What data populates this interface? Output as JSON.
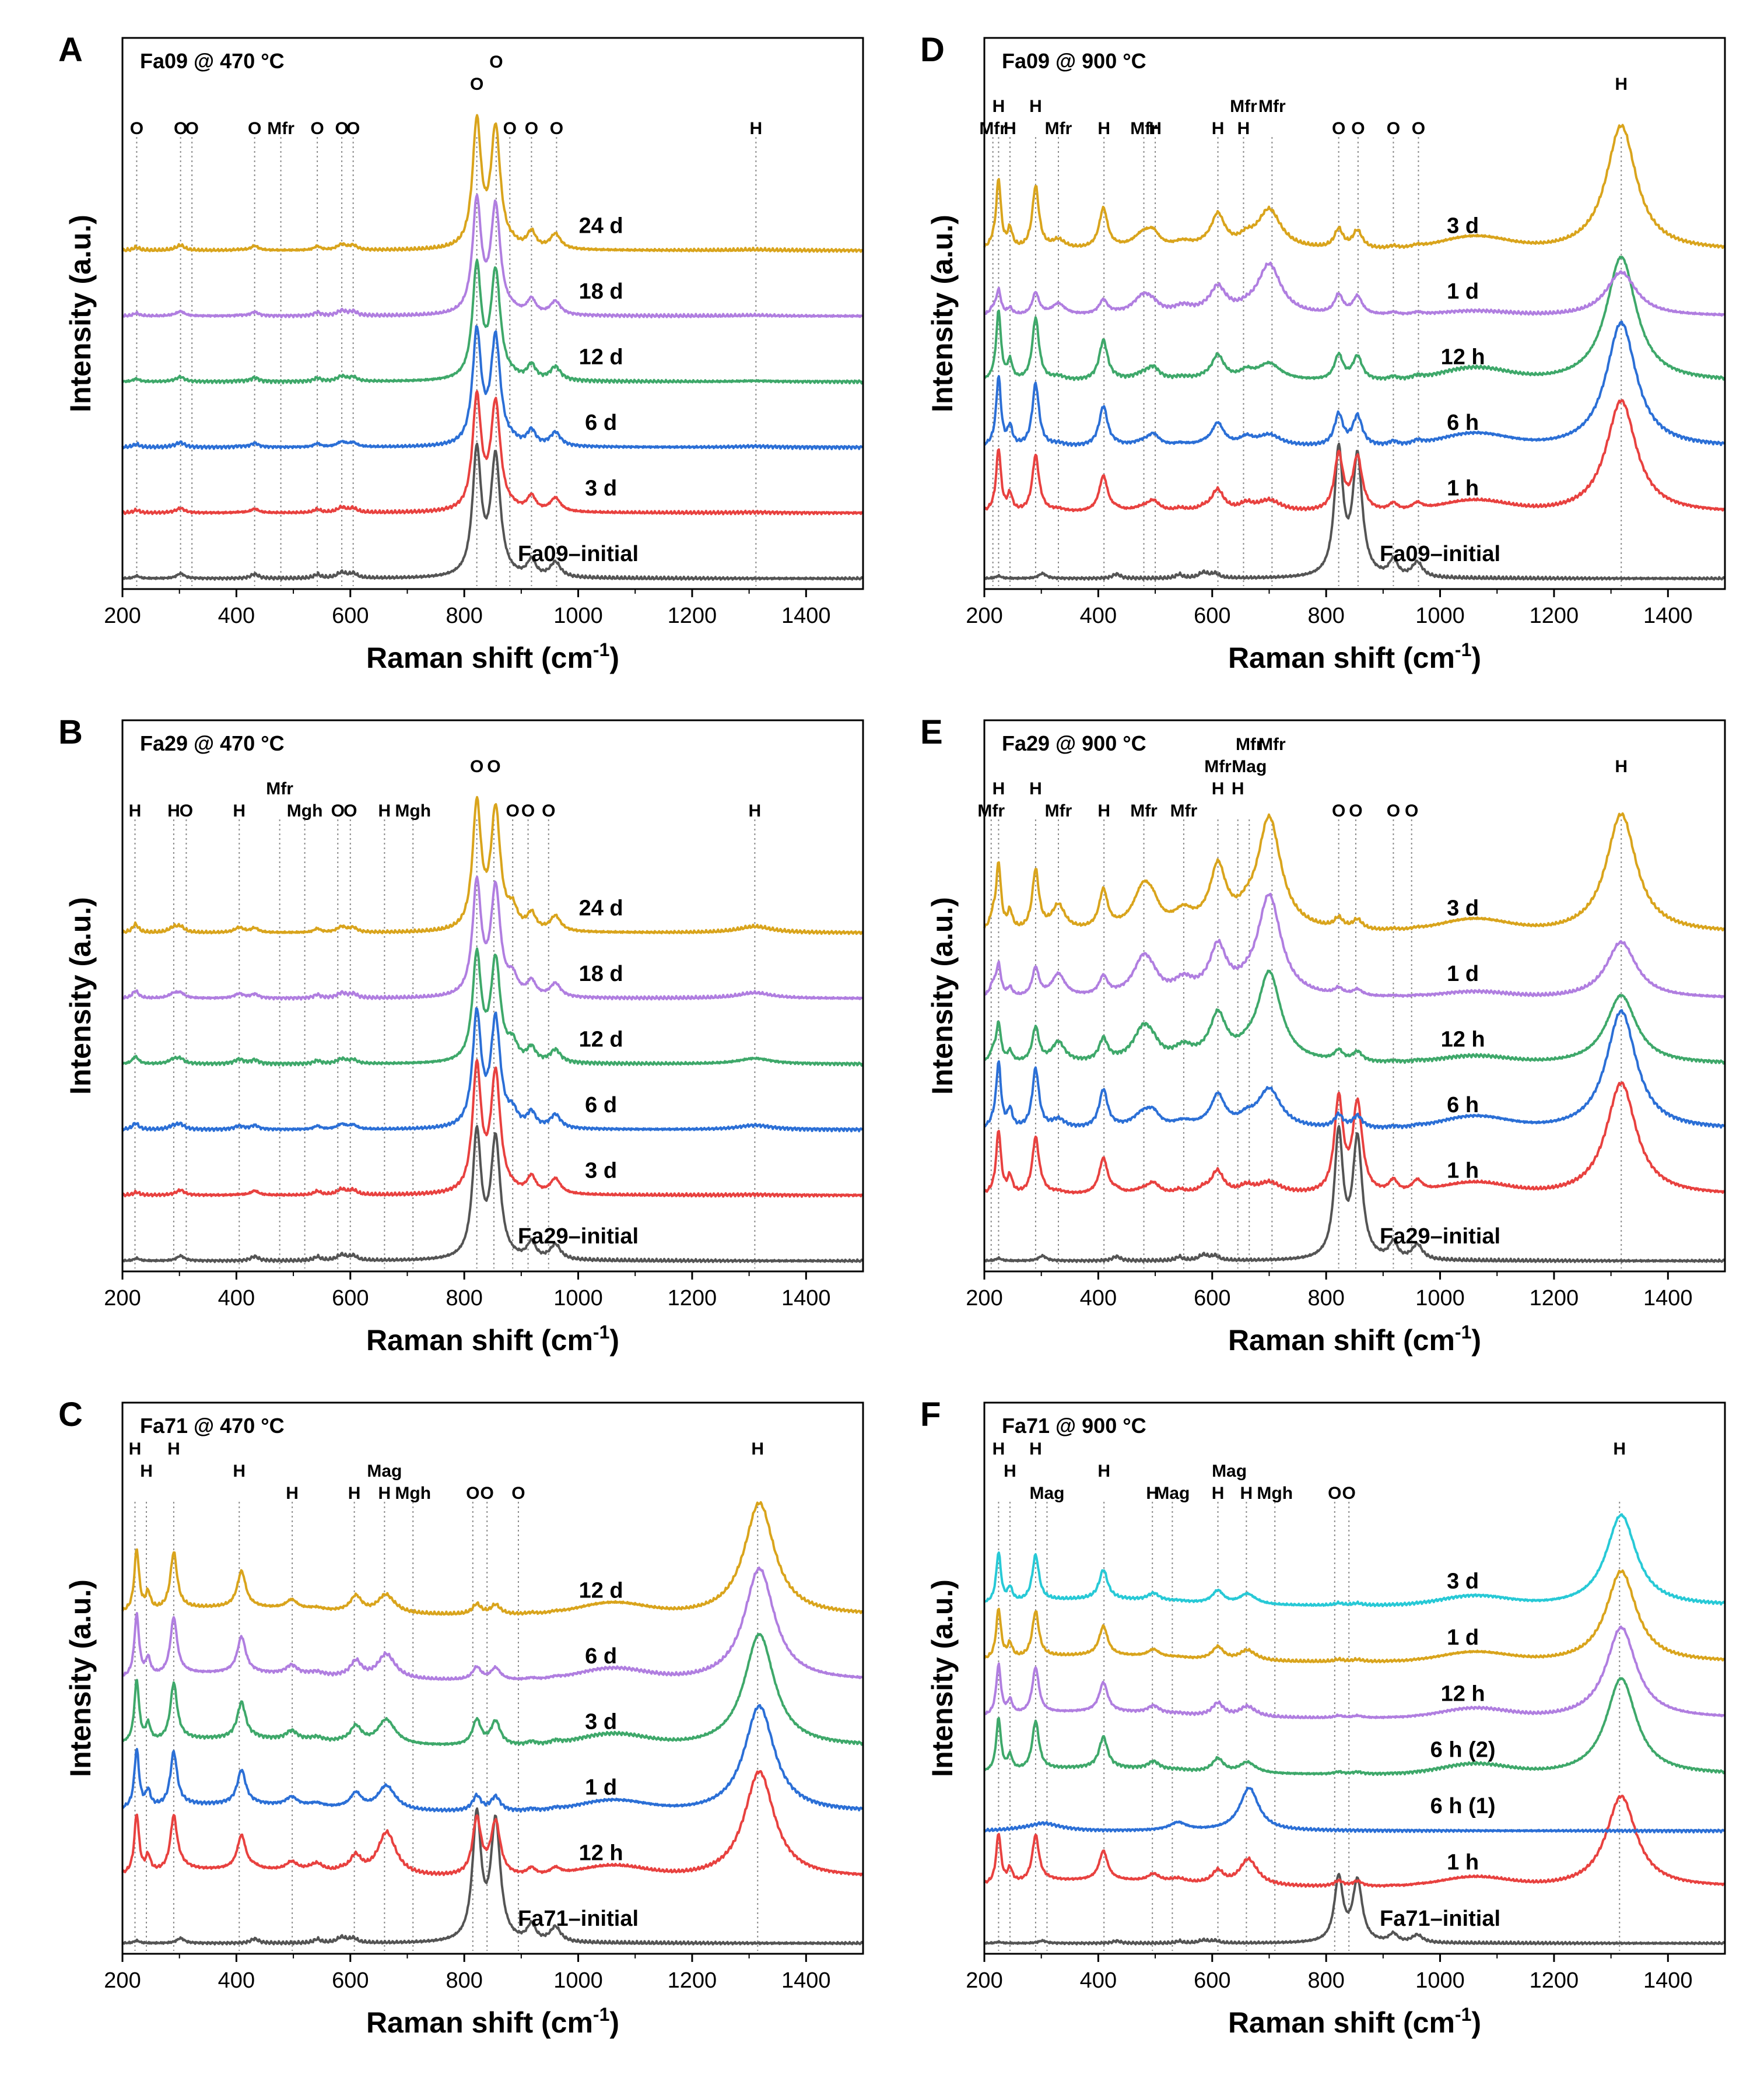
{
  "figure": {
    "x_axis_title": "Raman shift (cm",
    "x_axis_sup": "-1",
    "x_axis_close": ")",
    "y_axis_title": "Intensity (a.u.)"
  },
  "colors": {
    "initial": "#545454",
    "red": "#e8413f",
    "blue": "#2b6fd6",
    "green": "#3ea86a",
    "purple": "#b07ee0",
    "gold": "#d9a41c",
    "cyan": "#27c9d6",
    "axis": "#000000",
    "ref_line": "#8a8a8a"
  },
  "chart_data": [
    {
      "id": "A",
      "type": "line",
      "title": "Fa09 @ 470 °C",
      "xlabel": "Raman shift (cm-1)",
      "ylabel": "Intensity (a.u.)",
      "xlim": [
        200,
        1500
      ],
      "xticks": [
        200,
        400,
        600,
        800,
        1000,
        1200,
        1400
      ],
      "ref_lines": [
        225,
        302,
        322,
        432,
        478,
        542,
        585,
        605,
        822,
        856,
        880,
        918,
        962,
        1312
      ],
      "peak_labels": [
        {
          "x": 225,
          "text": "O",
          "row": 0
        },
        {
          "x": 302,
          "text": "O",
          "row": 0
        },
        {
          "x": 322,
          "text": "O",
          "row": 0
        },
        {
          "x": 432,
          "text": "O",
          "row": 0
        },
        {
          "x": 478,
          "text": "Mfr",
          "row": 0
        },
        {
          "x": 542,
          "text": "O",
          "row": 0
        },
        {
          "x": 585,
          "text": "O",
          "row": 0
        },
        {
          "x": 605,
          "text": "O",
          "row": 0
        },
        {
          "x": 880,
          "text": "O",
          "row": 0
        },
        {
          "x": 918,
          "text": "O",
          "row": 0
        },
        {
          "x": 962,
          "text": "O",
          "row": 0
        },
        {
          "x": 1312,
          "text": "H",
          "row": 0
        },
        {
          "x": 822,
          "text": "O",
          "row": 2
        },
        {
          "x": 856,
          "text": "O",
          "row": 3
        }
      ],
      "series": [
        {
          "name": "Fa09–initial",
          "color": "initial",
          "kind": "olivine",
          "o_amp": 1.0,
          "ox": 0
        },
        {
          "name": "3 d",
          "color": "red",
          "kind": "olivine",
          "o_amp": 0.9,
          "ox": 0.05
        },
        {
          "name": "6 d",
          "color": "blue",
          "kind": "olivine",
          "o_amp": 0.9,
          "ox": 0.08
        },
        {
          "name": "12 d",
          "color": "green",
          "kind": "olivine",
          "o_amp": 0.9,
          "ox": 0.06
        },
        {
          "name": "18 d",
          "color": "purple",
          "kind": "olivine",
          "o_amp": 0.9,
          "ox": 0.06
        },
        {
          "name": "24 d",
          "color": "gold",
          "kind": "olivine",
          "o_amp": 1.0,
          "ox": 0.06
        }
      ]
    },
    {
      "id": "B",
      "type": "line",
      "title": "Fa29 @ 470 °C",
      "xlabel": "Raman shift (cm-1)",
      "ylabel": "Intensity (a.u.)",
      "xlim": [
        200,
        1500
      ],
      "xticks": [
        200,
        400,
        600,
        800,
        1000,
        1200,
        1400
      ],
      "ref_lines": [
        222,
        290,
        312,
        405,
        476,
        520,
        578,
        600,
        660,
        710,
        822,
        852,
        885,
        912,
        948,
        1310
      ],
      "peak_labels": [
        {
          "x": 222,
          "text": "H",
          "row": 0
        },
        {
          "x": 290,
          "text": "H",
          "row": 0
        },
        {
          "x": 312,
          "text": "O",
          "row": 0
        },
        {
          "x": 405,
          "text": "H",
          "row": 0
        },
        {
          "x": 476,
          "text": "Mfr",
          "row": 1
        },
        {
          "x": 520,
          "text": "Mgh",
          "row": 0
        },
        {
          "x": 578,
          "text": "O",
          "row": 0
        },
        {
          "x": 600,
          "text": "O",
          "row": 0
        },
        {
          "x": 660,
          "text": "H",
          "row": 0
        },
        {
          "x": 710,
          "text": "Mgh",
          "row": 0
        },
        {
          "x": 885,
          "text": "O",
          "row": 0
        },
        {
          "x": 912,
          "text": "O",
          "row": 0
        },
        {
          "x": 948,
          "text": "O",
          "row": 0
        },
        {
          "x": 1310,
          "text": "H",
          "row": 0
        },
        {
          "x": 822,
          "text": "O",
          "row": 2
        },
        {
          "x": 852,
          "text": "O",
          "row": 2
        }
      ],
      "series": [
        {
          "name": "Fa29–initial",
          "color": "initial",
          "kind": "olivine",
          "o_amp": 1.0,
          "ox": 0
        },
        {
          "name": "3 d",
          "color": "red",
          "kind": "olivine",
          "o_amp": 1.0,
          "ox": 0.05
        },
        {
          "name": "6 d",
          "color": "blue",
          "kind": "olivine",
          "o_amp": 0.9,
          "ox": 0.35
        },
        {
          "name": "12 d",
          "color": "green",
          "kind": "olivine",
          "o_amp": 0.85,
          "ox": 0.45
        },
        {
          "name": "18 d",
          "color": "purple",
          "kind": "olivine",
          "o_amp": 0.9,
          "ox": 0.45
        },
        {
          "name": "24 d",
          "color": "gold",
          "kind": "olivine",
          "o_amp": 1.0,
          "ox": 0.5
        }
      ]
    },
    {
      "id": "C",
      "type": "line",
      "title": "Fa71 @ 470 °C",
      "xlabel": "Raman shift (cm-1)",
      "ylabel": "Intensity (a.u.)",
      "xlim": [
        200,
        1500
      ],
      "xticks": [
        200,
        400,
        600,
        800,
        1000,
        1200,
        1400
      ],
      "ref_lines": [
        222,
        242,
        290,
        405,
        498,
        607,
        660,
        710,
        815,
        840,
        895,
        1315
      ],
      "peak_labels": [
        {
          "x": 222,
          "text": "H",
          "row": 2
        },
        {
          "x": 242,
          "text": "H",
          "row": 1
        },
        {
          "x": 290,
          "text": "H",
          "row": 2
        },
        {
          "x": 405,
          "text": "H",
          "row": 1
        },
        {
          "x": 498,
          "text": "H",
          "row": 0
        },
        {
          "x": 607,
          "text": "H",
          "row": 0
        },
        {
          "x": 660,
          "text": "Mag",
          "row": 1
        },
        {
          "x": 660,
          "text": "H",
          "row": 0
        },
        {
          "x": 710,
          "text": "Mgh",
          "row": 0
        },
        {
          "x": 815,
          "text": "O",
          "row": 0
        },
        {
          "x": 840,
          "text": "O",
          "row": 0
        },
        {
          "x": 895,
          "text": "O",
          "row": 0
        },
        {
          "x": 1315,
          "text": "H",
          "row": 2
        }
      ],
      "series": [
        {
          "name": "Fa71–initial",
          "color": "initial",
          "kind": "olivine",
          "o_amp": 1.0,
          "ox": 0
        },
        {
          "name": "12 h",
          "color": "red",
          "kind": "mix",
          "o_amp": 0.45,
          "h_amp": 0.85,
          "mag": 0.3
        },
        {
          "name": "1 d",
          "color": "blue",
          "kind": "mix",
          "o_amp": 0.12,
          "h_amp": 0.85,
          "mag": 0.15
        },
        {
          "name": "3 d",
          "color": "green",
          "kind": "mix",
          "o_amp": 0.2,
          "h_amp": 0.9,
          "mag": 0.15
        },
        {
          "name": "6 d",
          "color": "purple",
          "kind": "mix",
          "o_amp": 0.1,
          "h_amp": 0.9,
          "mag": 0.15
        },
        {
          "name": "12 d",
          "color": "gold",
          "kind": "mix",
          "o_amp": 0.08,
          "h_amp": 0.9,
          "mag": 0.1
        }
      ]
    },
    {
      "id": "D",
      "type": "line",
      "title": "Fa09 @ 900 °C",
      "xlabel": "Raman shift (cm-1)",
      "ylabel": "Intensity (a.u.)",
      "xlim": [
        200,
        1500
      ],
      "xticks": [
        200,
        400,
        600,
        800,
        1000,
        1200,
        1400
      ],
      "ref_lines": [
        215,
        225,
        245,
        290,
        330,
        410,
        480,
        500,
        610,
        655,
        705,
        822,
        856,
        918,
        962,
        1318
      ],
      "peak_labels": [
        {
          "x": 215,
          "text": "Mfr",
          "row": 0
        },
        {
          "x": 225,
          "text": "H",
          "row": 1
        },
        {
          "x": 245,
          "text": "H",
          "row": 0
        },
        {
          "x": 290,
          "text": "H",
          "row": 1
        },
        {
          "x": 330,
          "text": "Mfr",
          "row": 0
        },
        {
          "x": 410,
          "text": "H",
          "row": 0
        },
        {
          "x": 480,
          "text": "Mfr",
          "row": 0
        },
        {
          "x": 500,
          "text": "H",
          "row": 0
        },
        {
          "x": 610,
          "text": "H",
          "row": 0
        },
        {
          "x": 655,
          "text": "H",
          "row": 0
        },
        {
          "x": 655,
          "text": "Mfr",
          "row": 1
        },
        {
          "x": 705,
          "text": "Mfr",
          "row": 1
        },
        {
          "x": 822,
          "text": "O",
          "row": 0
        },
        {
          "x": 856,
          "text": "O",
          "row": 0
        },
        {
          "x": 918,
          "text": "O",
          "row": 0
        },
        {
          "x": 962,
          "text": "O",
          "row": 0
        },
        {
          "x": 1318,
          "text": "H",
          "row": 2
        }
      ],
      "series": [
        {
          "name": "Fa09–initial",
          "color": "initial",
          "kind": "olivine",
          "o_amp": 1.0,
          "ox": 0
        },
        {
          "name": "1 h",
          "color": "red",
          "kind": "hem",
          "o_amp": 0.45,
          "h_amp": 0.9,
          "mfr": 0.1
        },
        {
          "name": "6 h",
          "color": "blue",
          "kind": "hem",
          "o_amp": 0.25,
          "h_amp": 1.0,
          "mfr": 0.1
        },
        {
          "name": "12 h",
          "color": "green",
          "kind": "hem",
          "o_amp": 0.2,
          "h_amp": 1.0,
          "mfr": 0.15
        },
        {
          "name": "1 d",
          "color": "purple",
          "kind": "hem",
          "o_amp": 0.15,
          "h_amp": 0.35,
          "mfr": 0.45
        },
        {
          "name": "3 d",
          "color": "gold",
          "kind": "hem",
          "o_amp": 0.15,
          "h_amp": 1.0,
          "mfr": 0.35
        }
      ]
    },
    {
      "id": "E",
      "type": "line",
      "title": "Fa29 @ 900 °C",
      "xlabel": "Raman shift (cm-1)",
      "ylabel": "Intensity (a.u.)",
      "xlim": [
        200,
        1500
      ],
      "xticks": [
        200,
        400,
        600,
        800,
        1000,
        1200,
        1400
      ],
      "ref_lines": [
        212,
        225,
        290,
        330,
        410,
        480,
        550,
        610,
        645,
        665,
        705,
        822,
        852,
        918,
        950,
        1318
      ],
      "peak_labels": [
        {
          "x": 212,
          "text": "Mfr",
          "row": 0
        },
        {
          "x": 225,
          "text": "H",
          "row": 1
        },
        {
          "x": 290,
          "text": "H",
          "row": 1
        },
        {
          "x": 330,
          "text": "Mfr",
          "row": 0
        },
        {
          "x": 410,
          "text": "H",
          "row": 0
        },
        {
          "x": 480,
          "text": "Mfr",
          "row": 0
        },
        {
          "x": 550,
          "text": "Mfr",
          "row": 0
        },
        {
          "x": 610,
          "text": "H",
          "row": 1
        },
        {
          "x": 610,
          "text": "Mfr",
          "row": 2
        },
        {
          "x": 645,
          "text": "H",
          "row": 1
        },
        {
          "x": 665,
          "text": "Mag",
          "row": 2
        },
        {
          "x": 665,
          "text": "Mfr",
          "row": 3
        },
        {
          "x": 705,
          "text": "Mfr",
          "row": 3
        },
        {
          "x": 822,
          "text": "O",
          "row": 0
        },
        {
          "x": 852,
          "text": "O",
          "row": 0
        },
        {
          "x": 918,
          "text": "O",
          "row": 0
        },
        {
          "x": 950,
          "text": "O",
          "row": 0
        },
        {
          "x": 1318,
          "text": "H",
          "row": 2
        }
      ],
      "series": [
        {
          "name": "Fa29–initial",
          "color": "initial",
          "kind": "olivine",
          "o_amp": 1.0,
          "ox": 0
        },
        {
          "name": "1 h",
          "color": "red",
          "kind": "hem",
          "o_amp": 0.75,
          "h_amp": 0.9,
          "mfr": 0.1
        },
        {
          "name": "6 h",
          "color": "blue",
          "kind": "hem",
          "o_amp": 0.1,
          "h_amp": 0.95,
          "mfr": 0.35
        },
        {
          "name": "12 h",
          "color": "green",
          "kind": "hem",
          "o_amp": 0.08,
          "h_amp": 0.55,
          "mfr": 0.8
        },
        {
          "name": "1 d",
          "color": "purple",
          "kind": "hem",
          "o_amp": 0.05,
          "h_amp": 0.45,
          "mfr": 0.9
        },
        {
          "name": "3 d",
          "color": "gold",
          "kind": "hem",
          "o_amp": 0.08,
          "h_amp": 0.95,
          "mfr": 1.0
        }
      ]
    },
    {
      "id": "F",
      "type": "line",
      "title": "Fa71 @ 900 °C",
      "xlabel": "Raman shift (cm-1)",
      "ylabel": "Intensity (a.u.)",
      "xlim": [
        200,
        1500
      ],
      "xticks": [
        200,
        400,
        600,
        800,
        1000,
        1200,
        1400
      ],
      "ref_lines": [
        225,
        245,
        290,
        310,
        410,
        495,
        530,
        610,
        660,
        710,
        815,
        840,
        1315
      ],
      "peak_labels": [
        {
          "x": 225,
          "text": "H",
          "row": 2
        },
        {
          "x": 245,
          "text": "H",
          "row": 1
        },
        {
          "x": 290,
          "text": "H",
          "row": 2
        },
        {
          "x": 310,
          "text": "Mag",
          "row": 0
        },
        {
          "x": 410,
          "text": "H",
          "row": 1
        },
        {
          "x": 495,
          "text": "H",
          "row": 0
        },
        {
          "x": 530,
          "text": "Mag",
          "row": 0
        },
        {
          "x": 610,
          "text": "H",
          "row": 0
        },
        {
          "x": 630,
          "text": "Mag",
          "row": 1
        },
        {
          "x": 660,
          "text": "H",
          "row": 0
        },
        {
          "x": 710,
          "text": "Mgh",
          "row": 0
        },
        {
          "x": 815,
          "text": "O",
          "row": 0
        },
        {
          "x": 840,
          "text": "O",
          "row": 0
        },
        {
          "x": 1315,
          "text": "H",
          "row": 2
        }
      ],
      "series": [
        {
          "name": "Fa71–initial",
          "color": "initial",
          "kind": "olivine",
          "o_amp": 0.6,
          "ox": 0
        },
        {
          "name": "1 h",
          "color": "red",
          "kind": "mix",
          "o_amp": 0.05,
          "h_amp": 0.85,
          "mag": 0.2
        },
        {
          "name": "6 h (1)",
          "color": "blue",
          "kind": "magnetite",
          "o_amp": 0,
          "h_amp": 0
        },
        {
          "name": "6 h (2)",
          "color": "green",
          "kind": "mix",
          "o_amp": 0.02,
          "h_amp": 0.9,
          "mag": 0.05
        },
        {
          "name": "12 h",
          "color": "purple",
          "kind": "mix",
          "o_amp": 0.02,
          "h_amp": 0.85,
          "mag": 0.05
        },
        {
          "name": "1 d",
          "color": "gold",
          "kind": "mix",
          "o_amp": 0.02,
          "h_amp": 0.85,
          "mag": 0.05
        },
        {
          "name": "3 d",
          "color": "cyan",
          "kind": "mix",
          "o_amp": 0.02,
          "h_amp": 0.85,
          "mag": 0.05
        }
      ]
    }
  ]
}
